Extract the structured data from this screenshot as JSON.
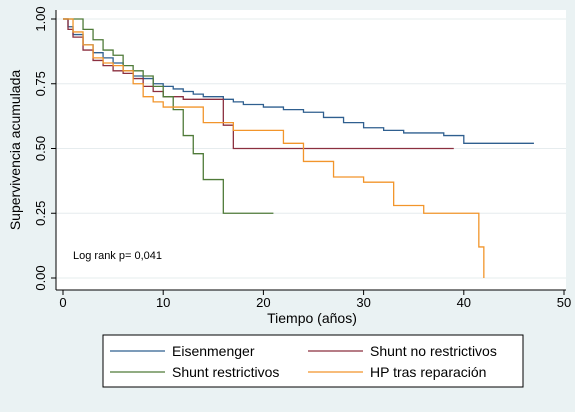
{
  "chart_data": {
    "type": "line",
    "title": "",
    "xlabel": "Tiempo (años)",
    "ylabel": "Supervivencia acumulada",
    "xlim": [
      0,
      50
    ],
    "ylim": [
      0,
      1
    ],
    "xticks": [
      "0",
      "10",
      "20",
      "30",
      "40",
      "50"
    ],
    "yticks": [
      "0.00",
      "0.25",
      "0.50",
      "0.75",
      "1.00"
    ],
    "grid": "horizontal",
    "legend_position": "bottom",
    "annotation": "Log rank p= 0,041",
    "series": [
      {
        "name": "Eisenmenger",
        "color": "#2f5f8f",
        "x": [
          0,
          0.5,
          1,
          2,
          3,
          4,
          5,
          6,
          7,
          8,
          9,
          10,
          11,
          12,
          13,
          14,
          15,
          16,
          17,
          18,
          20,
          22,
          24,
          26,
          28,
          30,
          32,
          34,
          36,
          38,
          40,
          47
        ],
        "y": [
          1.0,
          0.97,
          0.94,
          0.9,
          0.87,
          0.85,
          0.83,
          0.8,
          0.78,
          0.77,
          0.75,
          0.74,
          0.73,
          0.72,
          0.71,
          0.7,
          0.7,
          0.69,
          0.68,
          0.67,
          0.66,
          0.65,
          0.64,
          0.62,
          0.6,
          0.58,
          0.57,
          0.56,
          0.56,
          0.55,
          0.52,
          0.52
        ]
      },
      {
        "name": "Shunt no restrictivos",
        "color": "#8b2f3f",
        "x": [
          0,
          0.5,
          1,
          2,
          3,
          4,
          5,
          6,
          7,
          8,
          9,
          10,
          12,
          14,
          16,
          17,
          20,
          25,
          30,
          35,
          39
        ],
        "y": [
          1.0,
          0.96,
          0.93,
          0.88,
          0.84,
          0.82,
          0.8,
          0.79,
          0.77,
          0.74,
          0.72,
          0.7,
          0.69,
          0.69,
          0.59,
          0.5,
          0.5,
          0.5,
          0.5,
          0.5,
          0.5
        ]
      },
      {
        "name": "Shunt restrictivos",
        "color": "#4f7a38",
        "x": [
          0,
          1,
          2,
          3,
          4,
          5,
          6,
          7,
          8,
          9,
          10,
          11,
          12,
          13,
          14,
          16,
          21
        ],
        "y": [
          1.0,
          1.0,
          0.96,
          0.92,
          0.88,
          0.86,
          0.82,
          0.8,
          0.78,
          0.74,
          0.7,
          0.65,
          0.55,
          0.48,
          0.38,
          0.25,
          0.25
        ]
      },
      {
        "name": "HP tras reparación",
        "color": "#f2952b",
        "x": [
          0,
          1,
          2,
          3,
          4,
          5,
          6,
          7,
          8,
          9,
          10,
          12,
          14,
          17,
          20,
          22,
          24,
          27,
          30,
          33,
          36,
          40,
          41.5,
          42
        ],
        "y": [
          1.0,
          0.95,
          0.9,
          0.85,
          0.83,
          0.82,
          0.8,
          0.75,
          0.7,
          0.68,
          0.66,
          0.66,
          0.6,
          0.57,
          0.57,
          0.52,
          0.45,
          0.39,
          0.37,
          0.28,
          0.25,
          0.25,
          0.12,
          0.0
        ]
      }
    ]
  }
}
